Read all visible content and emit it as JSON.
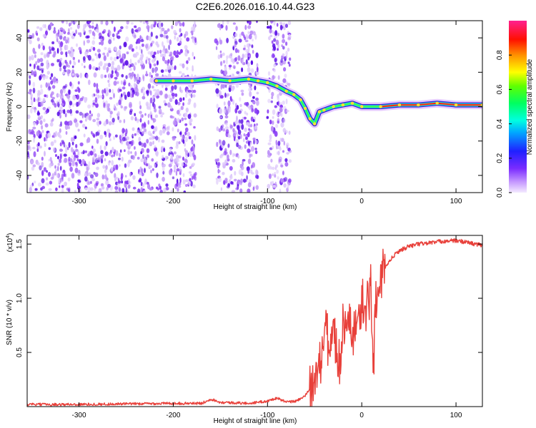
{
  "chart_data": [
    {
      "type": "heatmap",
      "title": "C2E6.2026.016.10.44.G23",
      "xlabel": "Height of straight line (km)",
      "ylabel": "Frequency (Hz)",
      "xlim": [
        -355,
        128
      ],
      "ylim": [
        -50,
        50
      ],
      "x_ticks": [
        -300,
        -200,
        -100,
        0,
        100
      ],
      "y_ticks": [
        -40,
        -20,
        0,
        20,
        40
      ],
      "grid": false,
      "colorbar": {
        "label": "Normalized spectral amplitude",
        "range": [
          0,
          1
        ],
        "ticks": [
          0.0,
          0.2,
          0.4,
          0.6,
          0.8
        ]
      },
      "ridge": {
        "x": [
          -218,
          -200,
          -180,
          -160,
          -140,
          -120,
          -110,
          -100,
          -90,
          -80,
          -72,
          -65,
          -60,
          -55,
          -50,
          -45,
          -40,
          -30,
          -20,
          -10,
          0,
          20,
          40,
          60,
          80,
          100,
          128
        ],
        "frequency": [
          15,
          15,
          15,
          16,
          15,
          16,
          15,
          14,
          12,
          9,
          7,
          4,
          -1,
          -7,
          -10,
          -3,
          -2,
          0,
          1,
          2,
          0,
          0,
          1,
          1,
          2,
          1,
          1
        ]
      }
    },
    {
      "type": "line",
      "xlabel": "Height of straight line (km)",
      "ylabel": "SNR (10 * v/v)",
      "y_scale_label": "(x10",
      "y_scale_exponent": "4",
      "xlim": [
        -355,
        128
      ],
      "ylim": [
        0.0,
        1.58
      ],
      "x_ticks": [
        -300,
        -200,
        -100,
        0,
        100
      ],
      "y_ticks": [
        "0.5",
        "1.0",
        "1.5"
      ],
      "series": [
        {
          "color": "#e8403a",
          "x": [
            -355,
            -300,
            -200,
            -170,
            -160,
            -150,
            -120,
            -100,
            -90,
            -80,
            -70,
            -60,
            -55,
            -50,
            -45,
            -40,
            -38,
            -35,
            -30,
            -25,
            -20,
            -15,
            -10,
            -5,
            0,
            5,
            10,
            12,
            15,
            20,
            25,
            30,
            35,
            40,
            50,
            60,
            70,
            80,
            90,
            100,
            110,
            120,
            128
          ],
          "y": [
            0.02,
            0.02,
            0.03,
            0.03,
            0.07,
            0.04,
            0.03,
            0.05,
            0.08,
            0.04,
            0.05,
            0.1,
            0.16,
            0.22,
            0.4,
            0.55,
            0.98,
            0.45,
            0.8,
            0.35,
            0.7,
            0.85,
            0.6,
            0.75,
            0.9,
            0.95,
            1.08,
            0.3,
            1.05,
            1.15,
            1.28,
            1.35,
            1.4,
            1.44,
            1.48,
            1.5,
            1.51,
            1.52,
            1.53,
            1.53,
            1.52,
            1.5,
            1.49
          ]
        }
      ]
    }
  ]
}
